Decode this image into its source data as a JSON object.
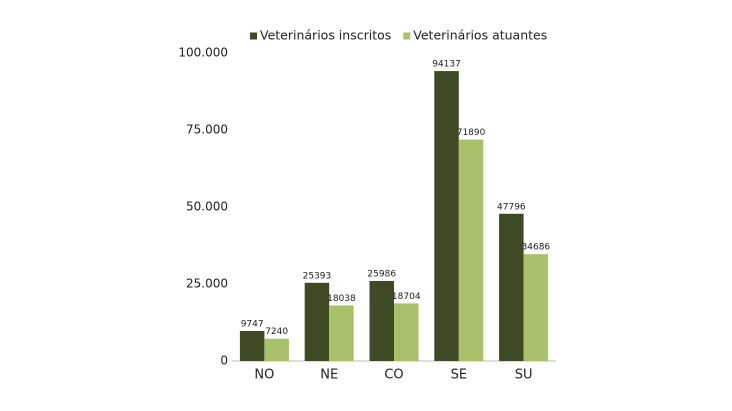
{
  "chart_data": {
    "type": "bar",
    "categories": [
      "NO",
      "NE",
      "CO",
      "SE",
      "SU"
    ],
    "series": [
      {
        "name": "Veterinários inscritos",
        "color": "#3f4a25",
        "values": [
          9747,
          25393,
          25986,
          94137,
          47796
        ]
      },
      {
        "name": "Veterinários atuantes",
        "color": "#a9c16a",
        "values": [
          7240,
          18038,
          18704,
          71890,
          34686
        ]
      }
    ],
    "ylim": [
      0,
      100000
    ],
    "yticks": [
      0,
      {
        "value": 25000,
        "label": "25.000"
      },
      {
        "value": 50000,
        "label": "50.000"
      },
      {
        "value": 75000,
        "label": "75.000"
      },
      {
        "value": 100000,
        "label": "100.000"
      }
    ],
    "grid": false,
    "legend": "top"
  }
}
